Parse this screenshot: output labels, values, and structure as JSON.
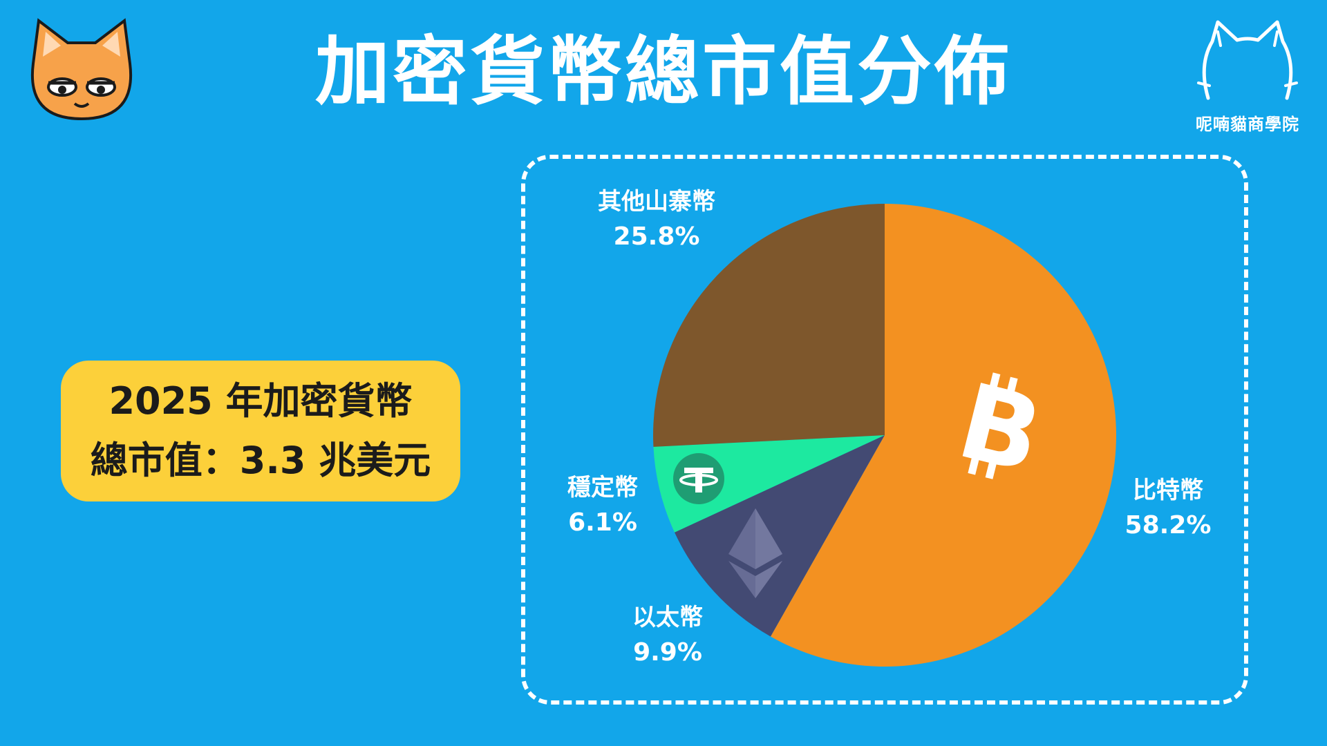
{
  "title": "加密貨幣總市值分佈",
  "brand": {
    "name": "呢喃貓商學院"
  },
  "info_box": {
    "line1": "2025 年加密貨幣",
    "line2": "總市值：3.3 兆美元"
  },
  "colors": {
    "background": "#12a6ea",
    "bitcoin": "#f39121",
    "ethereum": "#434a73",
    "stablecoin": "#1de9a0",
    "altcoins": "#7e572c",
    "info_box": "#fcd03a"
  },
  "icons": {
    "bitcoin": "bitcoin-icon",
    "ethereum": "ethereum-icon",
    "stablecoin": "tether-icon",
    "mascot": "cat-mascot-icon",
    "brand": "cat-outline-logo-icon"
  },
  "chart_data": {
    "type": "pie",
    "slices": [
      {
        "label": "比特幣",
        "value": 58.2,
        "value_label": "58.2%",
        "color": "#f39121"
      },
      {
        "label": "以太幣",
        "value": 9.9,
        "value_label": "9.9%",
        "color": "#434a73"
      },
      {
        "label": "穩定幣",
        "value": 6.1,
        "value_label": "6.1%",
        "color": "#1de9a0"
      },
      {
        "label": "其他山寨幣",
        "value": 25.8,
        "value_label": "25.8%",
        "color": "#7e572c"
      }
    ]
  }
}
